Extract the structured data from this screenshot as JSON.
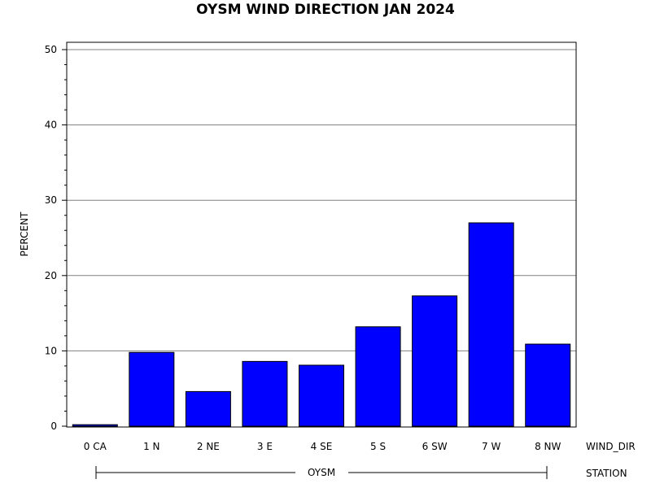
{
  "chart_data": {
    "type": "bar",
    "title": "OYSM WIND DIRECTION JAN 2024",
    "ylabel": "PERCENT",
    "xlabel": "WIND_DIR",
    "group_axis_label": "STATION",
    "group_name": "OYSM",
    "categories": [
      "0 CA",
      "1 N",
      "2 NE",
      "3 E",
      "4 SE",
      "5 S",
      "6 SW",
      "7 W",
      "8 NW"
    ],
    "values": [
      0.2,
      9.8,
      4.6,
      8.6,
      8.1,
      13.2,
      17.3,
      27.0,
      10.9
    ],
    "ylim": [
      0,
      50
    ],
    "yticks": [
      "0",
      "10",
      "20",
      "30",
      "40",
      "50"
    ],
    "grid": true,
    "colors": {
      "bar": "#0000ff",
      "grid": "#808080",
      "axis": "#000000"
    }
  }
}
